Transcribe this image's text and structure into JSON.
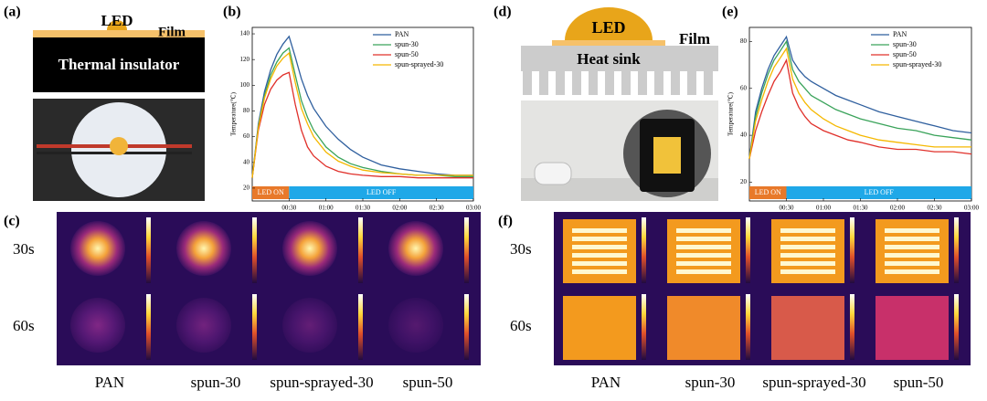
{
  "panel_labels": [
    "(a)",
    "(b)",
    "(c)",
    "(d)",
    "(e)",
    "(f)"
  ],
  "diagram_a": {
    "led": "LED",
    "film": "Film",
    "base": "Thermal insulator"
  },
  "diagram_d": {
    "led": "LED",
    "film": "Film",
    "base": "Heat sink"
  },
  "thermal_c": {
    "rows": [
      "30s",
      "60s"
    ],
    "columns": [
      "PAN",
      "spun-30",
      "spun-sprayed-30",
      "spun-50"
    ]
  },
  "thermal_f": {
    "rows": [
      "30s",
      "60s"
    ],
    "columns": [
      "PAN",
      "spun-30",
      "spun-sprayed-30",
      "spun-50"
    ]
  },
  "chart_data": [
    {
      "type": "line",
      "y_label": "Temperature(℃)",
      "x": [
        0,
        5,
        10,
        15,
        20,
        25,
        30,
        35,
        40,
        45,
        50,
        60,
        70,
        80,
        90,
        105,
        120,
        135,
        150,
        165,
        180
      ],
      "xlim": [
        0,
        180
      ],
      "xticks": [
        {
          "value": 30,
          "label": "00:30"
        },
        {
          "value": 60,
          "label": "01:00"
        },
        {
          "value": 90,
          "label": "01:30"
        },
        {
          "value": 120,
          "label": "02:00"
        },
        {
          "value": 150,
          "label": "02:30"
        },
        {
          "value": 180,
          "label": "03:00"
        }
      ],
      "ylim": [
        10,
        145
      ],
      "yticks": [
        20,
        40,
        60,
        80,
        100,
        120,
        140
      ],
      "legend": "upper right",
      "phases": [
        {
          "label": "LED ON",
          "start": 0,
          "end": 30,
          "color": "#e8792a"
        },
        {
          "label": "LED OFF",
          "start": 30,
          "end": 180,
          "color": "#1fa8e8"
        }
      ],
      "series": [
        {
          "name": "PAN",
          "color": "#2f5f9e",
          "values": [
            28,
            70,
            95,
            112,
            124,
            132,
            138,
            122,
            105,
            92,
            82,
            68,
            58,
            50,
            44,
            38,
            35,
            33,
            31,
            30,
            30
          ]
        },
        {
          "name": "spun-30",
          "color": "#3aa35a",
          "values": [
            28,
            68,
            92,
            108,
            118,
            125,
            129,
            108,
            88,
            75,
            65,
            52,
            44,
            39,
            36,
            33,
            31,
            30,
            30,
            29,
            29
          ]
        },
        {
          "name": "spun-50",
          "color": "#e0302a",
          "values": [
            28,
            65,
            85,
            97,
            104,
            108,
            110,
            85,
            65,
            52,
            45,
            37,
            33,
            31,
            30,
            29,
            29,
            28,
            28,
            28,
            28
          ]
        },
        {
          "name": "spun-sprayed-30",
          "color": "#f5b800",
          "values": [
            28,
            67,
            90,
            105,
            115,
            121,
            125,
            102,
            82,
            70,
            60,
            48,
            41,
            37,
            34,
            32,
            31,
            30,
            30,
            30,
            30
          ]
        }
      ]
    },
    {
      "type": "line",
      "y_label": "Temperature(℃)",
      "x": [
        0,
        5,
        10,
        15,
        20,
        25,
        30,
        35,
        40,
        45,
        50,
        60,
        70,
        80,
        90,
        105,
        120,
        135,
        150,
        165,
        180
      ],
      "xlim": [
        0,
        180
      ],
      "xticks": [
        {
          "value": 30,
          "label": "00:30"
        },
        {
          "value": 60,
          "label": "01:00"
        },
        {
          "value": 90,
          "label": "01:30"
        },
        {
          "value": 120,
          "label": "02:00"
        },
        {
          "value": 150,
          "label": "02:30"
        },
        {
          "value": 180,
          "label": "03:00"
        }
      ],
      "ylim": [
        12,
        86
      ],
      "yticks": [
        20,
        40,
        60,
        80
      ],
      "legend": "upper right",
      "phases": [
        {
          "label": "LED ON",
          "start": 0,
          "end": 30,
          "color": "#e8792a"
        },
        {
          "label": "LED OFF",
          "start": 30,
          "end": 180,
          "color": "#1fa8e8"
        }
      ],
      "series": [
        {
          "name": "PAN",
          "color": "#2f5f9e",
          "values": [
            30,
            50,
            60,
            68,
            74,
            78,
            82,
            72,
            68,
            65,
            63,
            60,
            57,
            55,
            53,
            50,
            48,
            46,
            44,
            42,
            41
          ]
        },
        {
          "name": "spun-30",
          "color": "#3aa35a",
          "values": [
            30,
            48,
            58,
            66,
            72,
            76,
            80,
            68,
            63,
            60,
            57,
            54,
            51,
            49,
            47,
            45,
            43,
            42,
            40,
            39,
            38
          ]
        },
        {
          "name": "spun-50",
          "color": "#e0302a",
          "values": [
            30,
            42,
            50,
            57,
            63,
            67,
            72,
            58,
            52,
            48,
            45,
            42,
            40,
            38,
            37,
            35,
            34,
            34,
            33,
            33,
            32
          ]
        },
        {
          "name": "spun-sprayed-30",
          "color": "#f5b800",
          "values": [
            30,
            46,
            55,
            63,
            69,
            73,
            77,
            64,
            58,
            54,
            51,
            47,
            44,
            42,
            40,
            38,
            37,
            36,
            35,
            35,
            35
          ]
        }
      ]
    }
  ]
}
